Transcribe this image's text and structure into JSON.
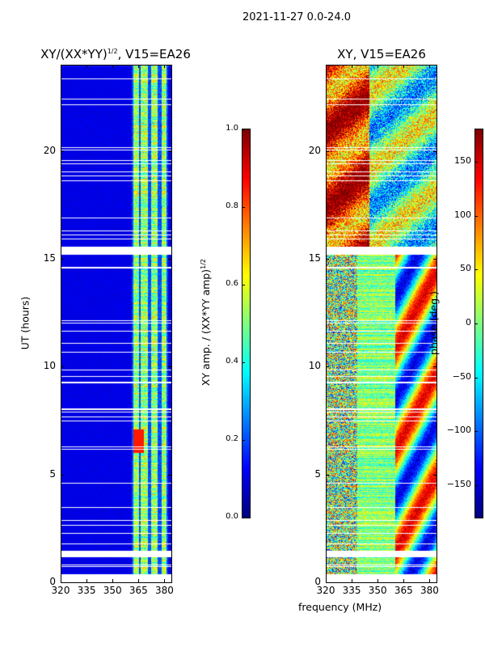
{
  "suptitle": "2021-11-27 0.0-24.0",
  "chart_data": [
    {
      "type": "heatmap",
      "title": "XY/(XX*YY)",
      "title_sup": "1/2",
      "title_suffix": ", V15=EA26",
      "xlabel": "",
      "ylabel": "UT (hours)",
      "xlim": [
        320,
        384
      ],
      "ylim": [
        0,
        24
      ],
      "xticks": [
        320,
        335,
        350,
        365,
        380
      ],
      "yticks": [
        0,
        5,
        10,
        15,
        20
      ],
      "colormap": "jet",
      "colorbar": {
        "label": "XY amp. / (XX*YY amp)",
        "label_sup": "1/2",
        "range": [
          0.0,
          1.0
        ],
        "ticks": [
          "0.0",
          "0.2",
          "0.4",
          "0.6",
          "0.8",
          "1.0"
        ]
      }
    },
    {
      "type": "heatmap",
      "title": "XY, V15=EA26",
      "xlabel": "frequency (MHz)",
      "ylabel": "",
      "xlim": [
        320,
        384
      ],
      "ylim": [
        0,
        24
      ],
      "xticks": [
        320,
        335,
        350,
        365,
        380
      ],
      "yticks": [
        0,
        5,
        10,
        15,
        20
      ],
      "colormap": "jet",
      "colorbar": {
        "label": "phase (deg.)",
        "range": [
          -180,
          180
        ],
        "ticks": [
          "−150",
          "−100",
          "−50",
          "0",
          "50",
          "100",
          "150"
        ],
        "tick_values": [
          -150,
          -100,
          -50,
          0,
          50,
          100,
          150
        ]
      }
    }
  ]
}
